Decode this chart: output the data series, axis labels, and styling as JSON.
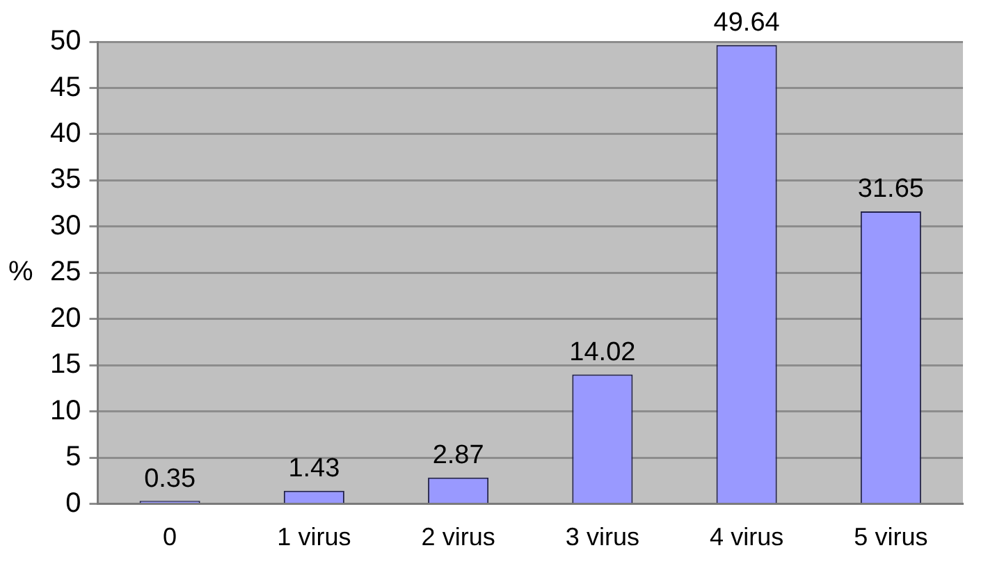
{
  "chart_data": {
    "type": "bar",
    "ylabel": "%",
    "categories": [
      "0",
      "1 virus",
      "2 virus",
      "3 virus",
      "4 virus",
      "5 virus"
    ],
    "values": [
      0.35,
      1.43,
      2.87,
      14.02,
      49.64,
      31.65
    ],
    "color": "#9999ff",
    "ylim": [
      0,
      50
    ],
    "yticks": [
      0,
      5,
      10,
      15,
      20,
      25,
      30,
      35,
      40,
      45,
      50
    ],
    "grid": "y",
    "data_labels": true
  }
}
